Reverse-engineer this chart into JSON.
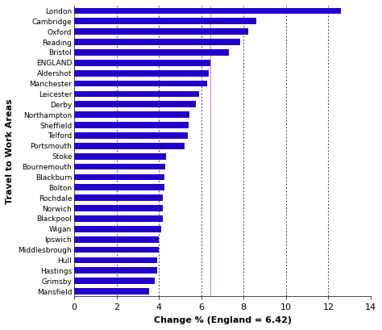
{
  "categories": [
    "London",
    "Cambridge",
    "Oxford",
    "Reading",
    "Bristol",
    "ENGLAND",
    "Aldershot",
    "Manchester",
    "Leicester",
    "Derby",
    "Northampton",
    "Sheffield",
    "Telford",
    "Portsmouth",
    "Stoke",
    "Bournemouth",
    "Blackburn",
    "Bolton",
    "Rochdale",
    "Norwich",
    "Blackpool",
    "Wigan",
    "Ipswich",
    "Middlesbrough",
    "Hull",
    "Hastings",
    "Grimsby",
    "Mansfield"
  ],
  "values": [
    12.6,
    8.6,
    8.2,
    7.85,
    7.3,
    6.42,
    6.35,
    6.28,
    5.9,
    5.75,
    5.45,
    5.4,
    5.35,
    5.2,
    4.35,
    4.3,
    4.25,
    4.25,
    4.2,
    4.2,
    4.2,
    4.1,
    3.98,
    3.98,
    3.93,
    3.93,
    3.82,
    3.55
  ],
  "bar_color": "#2200cc",
  "reference_line": 6.42,
  "reference_line_color": "#cc88cc",
  "xlabel": "Change % (England = 6.42)",
  "ylabel": "Travel to Work Areas",
  "xlim": [
    0,
    14
  ],
  "xticks": [
    0,
    2,
    4,
    6,
    8,
    10,
    12,
    14
  ],
  "dashed_lines": [
    2,
    4,
    6,
    8,
    10,
    12
  ],
  "bg_color": "#ffffff",
  "bar_height": 0.6
}
